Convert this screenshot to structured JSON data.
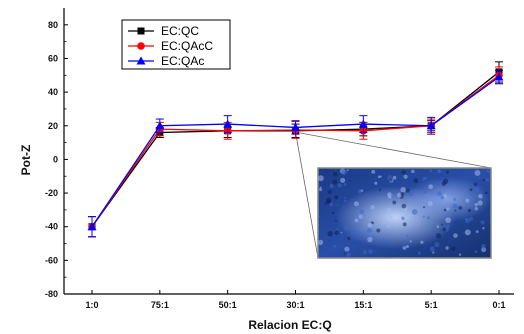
{
  "chart_data": {
    "type": "line",
    "xlabel": "Relacion EC:Q",
    "ylabel": "Pot-Z",
    "categories": [
      "1:0",
      "75:1",
      "50:1",
      "30:1",
      "15:1",
      "5:1",
      "0:1"
    ],
    "ylim": [
      -80,
      90
    ],
    "yticks": [
      -80,
      -60,
      -40,
      -20,
      0,
      20,
      40,
      60,
      80
    ],
    "grid": false,
    "legend_position": "top-left",
    "series": [
      {
        "name": "EC:QC",
        "color": "#000000",
        "marker": "square",
        "values": [
          -40,
          16,
          17,
          17,
          18,
          20,
          52
        ],
        "errors": [
          6,
          3,
          4,
          4,
          4,
          3,
          6
        ]
      },
      {
        "name": "EC:QAcC",
        "color": "#ff0000",
        "marker": "circle",
        "values": [
          -40,
          18,
          17,
          17.5,
          17,
          20,
          50
        ],
        "errors": [
          6,
          4,
          5,
          5,
          5,
          4,
          5
        ]
      },
      {
        "name": "EC:QAc",
        "color": "#0000ff",
        "marker": "triangle",
        "values": [
          -40,
          20,
          21,
          19,
          21,
          20,
          49
        ],
        "errors": [
          6,
          4,
          5,
          4,
          5,
          5,
          4
        ]
      }
    ],
    "inset": {
      "anchor_category": "30:1",
      "anchor_value": 18,
      "description": "micrograph"
    }
  },
  "axes": {
    "colors": {
      "axis": "#000000",
      "connector": "#666666",
      "inset_border": "#888888"
    }
  }
}
